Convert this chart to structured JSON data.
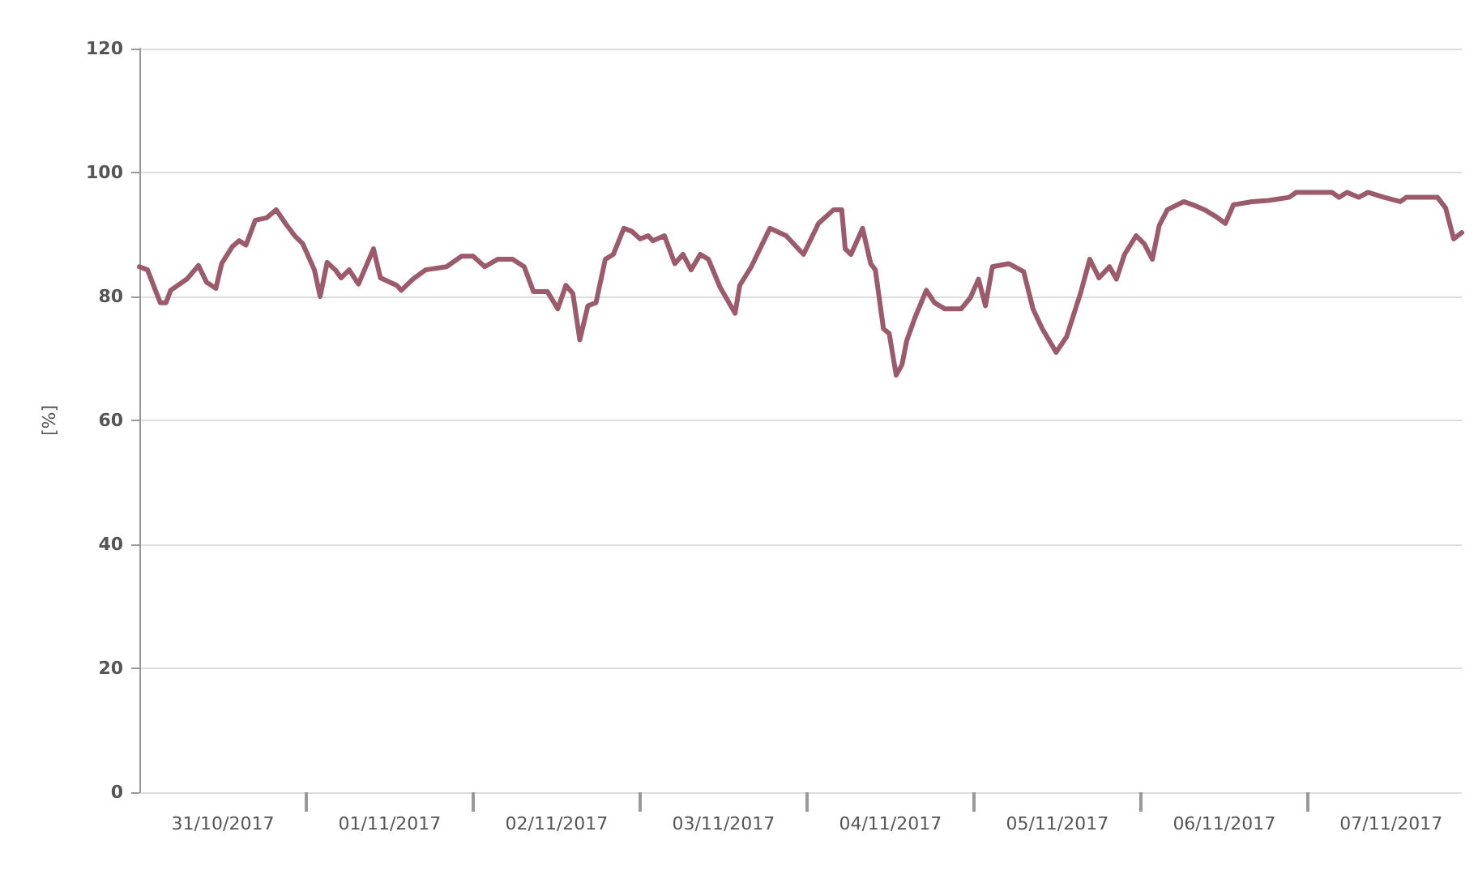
{
  "chart_data": {
    "type": "line",
    "ylabel": "[%]",
    "x": [
      "2017-10-31T00:00",
      "2017-10-31T01:10",
      "2017-10-31T03:00",
      "2017-10-31T03:50",
      "2017-10-31T04:30",
      "2017-10-31T06:50",
      "2017-10-31T08:30",
      "2017-10-31T09:40",
      "2017-10-31T11:00",
      "2017-10-31T11:50",
      "2017-10-31T13:20",
      "2017-10-31T14:20",
      "2017-10-31T15:20",
      "2017-10-31T16:40",
      "2017-10-31T18:20",
      "2017-10-31T19:40",
      "2017-10-31T21:00",
      "2017-10-31T22:20",
      "2017-10-31T23:30",
      "2017-11-01T01:10",
      "2017-11-01T02:00",
      "2017-11-01T03:00",
      "2017-11-01T04:10",
      "2017-11-01T05:00",
      "2017-11-01T06:10",
      "2017-11-01T07:30",
      "2017-11-01T09:40",
      "2017-11-01T10:40",
      "2017-11-01T13:00",
      "2017-11-01T13:40",
      "2017-11-01T15:20",
      "2017-11-01T17:10",
      "2017-11-01T20:10",
      "2017-11-01T22:20",
      "2017-11-02T00:00",
      "2017-11-02T01:40",
      "2017-11-02T03:30",
      "2017-11-02T05:40",
      "2017-11-02T07:20",
      "2017-11-02T08:40",
      "2017-11-02T10:40",
      "2017-11-02T12:10",
      "2017-11-02T13:20",
      "2017-11-02T14:20",
      "2017-11-02T15:20",
      "2017-11-02T16:30",
      "2017-11-02T17:40",
      "2017-11-02T19:00",
      "2017-11-02T20:10",
      "2017-11-02T21:40",
      "2017-11-02T22:50",
      "2017-11-03T00:00",
      "2017-11-03T01:10",
      "2017-11-03T01:50",
      "2017-11-03T03:30",
      "2017-11-03T05:00",
      "2017-11-03T06:10",
      "2017-11-03T07:20",
      "2017-11-03T08:40",
      "2017-11-03T09:50",
      "2017-11-03T11:30",
      "2017-11-03T13:40",
      "2017-11-03T14:20",
      "2017-11-03T16:00",
      "2017-11-03T18:40",
      "2017-11-03T21:00",
      "2017-11-03T23:30",
      "2017-11-04T01:40",
      "2017-11-04T03:50",
      "2017-11-04T05:00",
      "2017-11-04T05:30",
      "2017-11-04T06:20",
      "2017-11-04T08:00",
      "2017-11-04T09:10",
      "2017-11-04T09:50",
      "2017-11-04T11:00",
      "2017-11-04T11:50",
      "2017-11-04T12:50",
      "2017-11-04T13:40",
      "2017-11-04T14:20",
      "2017-11-04T15:30",
      "2017-11-04T17:10",
      "2017-11-04T18:20",
      "2017-11-04T19:50",
      "2017-11-04T22:10",
      "2017-11-04T23:30",
      "2017-11-05T00:40",
      "2017-11-05T01:40",
      "2017-11-05T02:40",
      "2017-11-05T05:00",
      "2017-11-05T07:10",
      "2017-11-05T08:30",
      "2017-11-05T09:50",
      "2017-11-05T11:50",
      "2017-11-05T13:20",
      "2017-11-05T15:20",
      "2017-11-05T16:40",
      "2017-11-05T18:00",
      "2017-11-05T19:30",
      "2017-11-05T20:30",
      "2017-11-05T21:40",
      "2017-11-05T23:20",
      "2017-11-06T00:30",
      "2017-11-06T01:40",
      "2017-11-06T02:40",
      "2017-11-06T03:50",
      "2017-11-06T06:10",
      "2017-11-06T07:30",
      "2017-11-06T09:10",
      "2017-11-06T10:40",
      "2017-11-06T12:10",
      "2017-11-06T13:20",
      "2017-11-06T16:00",
      "2017-11-06T18:20",
      "2017-11-06T21:20",
      "2017-11-06T22:20",
      "2017-11-07T03:30",
      "2017-11-07T04:30",
      "2017-11-07T05:40",
      "2017-11-07T07:20",
      "2017-11-07T08:40",
      "2017-11-07T11:00",
      "2017-11-07T13:20",
      "2017-11-07T14:10",
      "2017-11-07T18:40",
      "2017-11-07T19:50",
      "2017-11-07T21:00",
      "2017-11-07T22:10"
    ],
    "series": [
      {
        "color": "#9b5b6c",
        "values": [
          84.8,
          84.3,
          79,
          79,
          81,
          82.8,
          85,
          82.3,
          81.3,
          85.3,
          88,
          89,
          88.3,
          92.3,
          92.7,
          94,
          91.8,
          89.8,
          88.5,
          84.3,
          80,
          85.5,
          84.3,
          83,
          84.3,
          82,
          87.7,
          83,
          81.8,
          81,
          82.8,
          84.3,
          84.8,
          86.5,
          86.5,
          84.8,
          86,
          86,
          84.8,
          80.8,
          80.8,
          78,
          81.8,
          80.5,
          73,
          78.5,
          79,
          86,
          86.8,
          91,
          90.5,
          89.3,
          89.8,
          89,
          89.8,
          85.3,
          86.8,
          84.3,
          86.8,
          86,
          81.5,
          77.3,
          81.8,
          84.8,
          91,
          89.8,
          86.8,
          91.8,
          94,
          94,
          87.7,
          86.8,
          91,
          85.3,
          84.3,
          74.8,
          74,
          67.3,
          69,
          72.8,
          76.5,
          81,
          79,
          78,
          78,
          79.8,
          82.8,
          78.5,
          84.8,
          85.3,
          84,
          78,
          74.8,
          71,
          73.5,
          80.5,
          86,
          83,
          84.8,
          82.8,
          86.8,
          89.8,
          88.5,
          86,
          91.5,
          94,
          95.3,
          94.8,
          94,
          93,
          91.8,
          94.8,
          95.3,
          95.5,
          96,
          96.8,
          96.8,
          96,
          96.8,
          96,
          96.8,
          96,
          95.3,
          96,
          96,
          94.3,
          89.3,
          90.3
        ]
      }
    ],
    "xlim": [
      "2017-10-31T00:00",
      "2017-11-07T22:10"
    ],
    "xticks": [
      {
        "value": "2017-10-31T12:00",
        "label": "31/10/2017"
      },
      {
        "value": "2017-11-01T00:00",
        "label": null
      },
      {
        "value": "2017-11-01T12:00",
        "label": "01/11/2017"
      },
      {
        "value": "2017-11-02T00:00",
        "label": null
      },
      {
        "value": "2017-11-02T12:00",
        "label": "02/11/2017"
      },
      {
        "value": "2017-11-03T00:00",
        "label": null
      },
      {
        "value": "2017-11-03T12:00",
        "label": "03/11/2017"
      },
      {
        "value": "2017-11-04T00:00",
        "label": null
      },
      {
        "value": "2017-11-04T12:00",
        "label": "04/11/2017"
      },
      {
        "value": "2017-11-05T00:00",
        "label": null
      },
      {
        "value": "2017-11-05T12:00",
        "label": "05/11/2017"
      },
      {
        "value": "2017-11-06T00:00",
        "label": null
      },
      {
        "value": "2017-11-06T12:00",
        "label": "06/11/2017"
      },
      {
        "value": "2017-11-07T00:00",
        "label": null
      },
      {
        "value": "2017-11-07T12:00",
        "label": "07/11/2017"
      }
    ],
    "ylim": [
      0,
      120
    ],
    "yticks": [
      0,
      20,
      40,
      60,
      80,
      100,
      120
    ],
    "grid": "y",
    "line_style": "solid"
  }
}
